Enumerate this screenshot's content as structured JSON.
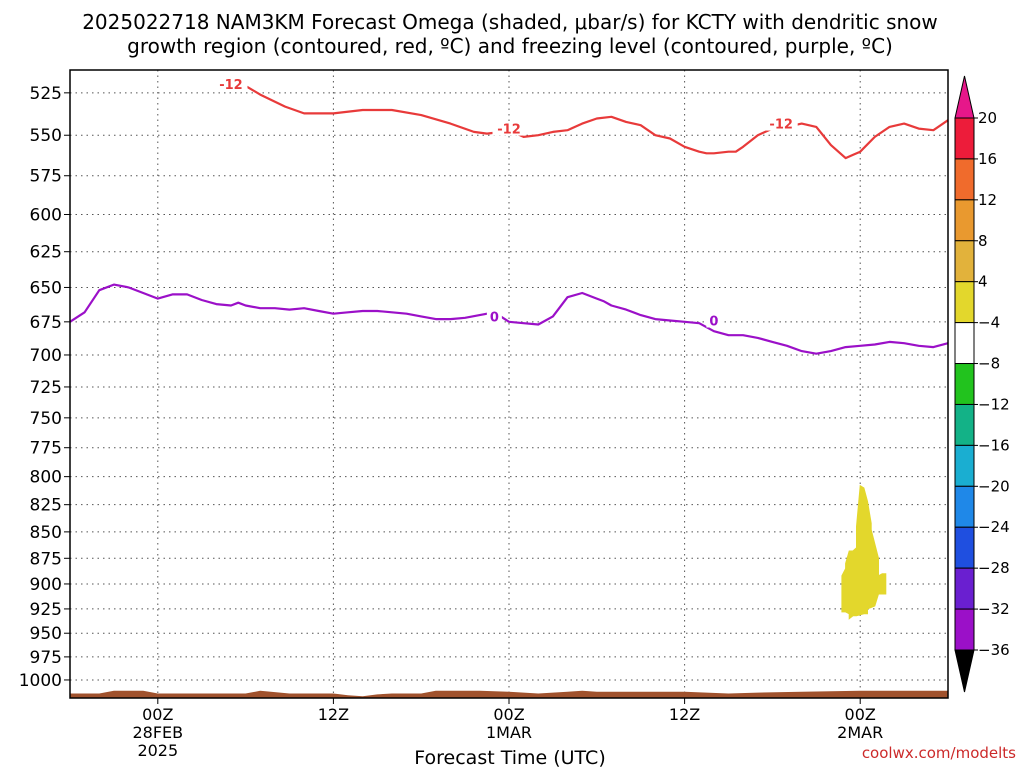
{
  "chart_data": {
    "type": "line",
    "title_line1": "2025022718 NAM3KM Forecast Omega (shaded, μbar/s) for KCTY with dendritic snow",
    "title_line2": "growth region (contoured, red, ºC) and freezing level (contoured, purple, ºC)",
    "xlabel": "Forecast Time (UTC)",
    "credit": "coolwx.com/modelts",
    "xlim": [
      0,
      60
    ],
    "ylim": [
      1020,
      512
    ],
    "yscale": "log",
    "grid": true,
    "y_ticks": [
      525,
      550,
      575,
      600,
      625,
      650,
      675,
      700,
      725,
      750,
      775,
      800,
      825,
      850,
      875,
      900,
      925,
      950,
      975,
      1000
    ],
    "x_ticks": [
      {
        "x": 6,
        "lines": [
          "00Z",
          "28FEB",
          "2025"
        ]
      },
      {
        "x": 18,
        "lines": [
          "12Z"
        ]
      },
      {
        "x": 30,
        "lines": [
          "00Z",
          "1MAR"
        ]
      },
      {
        "x": 42,
        "lines": [
          "12Z"
        ]
      },
      {
        "x": 54,
        "lines": [
          "00Z",
          "2MAR"
        ]
      }
    ],
    "series": [
      {
        "contour": "-12",
        "color": "#e83a3a",
        "x": [
          10.0,
          12.0,
          13.0,
          14.7,
          16.0,
          18.0,
          20.0,
          22.0,
          24.0,
          26.0,
          27.6,
          28.5,
          29.5,
          30.0,
          31.0,
          32.0,
          33.0,
          34.0,
          35.0,
          36.0,
          37.0,
          38.0,
          39.0,
          40.0,
          41.0,
          42.0,
          43.0,
          43.5,
          44.0,
          45.0,
          45.5,
          46.0,
          47.0,
          48.0,
          49.0,
          50.0,
          51.0,
          52.0,
          53.0,
          53.5,
          54.0,
          55.0,
          56.0,
          57.0,
          58.0,
          59.0,
          60.0
        ],
        "y": [
          517,
          521,
          526,
          533,
          537,
          537,
          535,
          535,
          538,
          543,
          548,
          549,
          548,
          547,
          551,
          550,
          548,
          547,
          543,
          540,
          539,
          542,
          544,
          550,
          552,
          557,
          560,
          561,
          561,
          560,
          560,
          557,
          550,
          546,
          545,
          543,
          545,
          556,
          564,
          562,
          560,
          551,
          545,
          543,
          546,
          547,
          541
        ],
        "labels": [
          {
            "x": 11,
            "y": 520
          },
          {
            "x": 30,
            "y": 546
          },
          {
            "x": 48.6,
            "y": 543
          }
        ]
      },
      {
        "contour": "0",
        "color": "#9b10c8",
        "x": [
          0.0,
          1.0,
          2.0,
          3.0,
          4.0,
          5.0,
          6.0,
          7.0,
          8.0,
          9.0,
          10.0,
          11.0,
          11.5,
          12.0,
          13.0,
          14.0,
          15.0,
          16.0,
          17.0,
          18.0,
          19.0,
          20.0,
          21.0,
          22.0,
          23.0,
          24.0,
          25.0,
          26.0,
          27.0,
          28.0,
          29.0,
          30.0,
          31.0,
          32.0,
          33.0,
          34.0,
          35.0,
          36.0,
          36.5,
          37.0,
          38.0,
          39.0,
          40.0,
          41.0,
          42.0,
          43.0,
          44.0,
          45.0,
          46.0,
          47.0,
          48.0,
          49.0,
          50.0,
          51.0,
          52.0,
          53.0,
          54.0,
          55.0,
          56.0,
          57.0,
          58.0,
          59.0,
          60.0
        ],
        "y": [
          675,
          668,
          652,
          648,
          650,
          654,
          658,
          655,
          655,
          659,
          662,
          663,
          661,
          663,
          665,
          665,
          666,
          665,
          667,
          669,
          668,
          667,
          667,
          668,
          669,
          671,
          673,
          673,
          672,
          670,
          668,
          675,
          676,
          677,
          671,
          657,
          654,
          658,
          660,
          663,
          666,
          670,
          673,
          674,
          675,
          676,
          682,
          685,
          685,
          687,
          690,
          693,
          697,
          699,
          697,
          694,
          693,
          692,
          690,
          691,
          693,
          694,
          691
        ],
        "labels": [
          {
            "x": 29,
            "y": 671
          },
          {
            "x": 44,
            "y": 674
          }
        ]
      }
    ],
    "shaded_regions": [
      {
        "color": "#e3d72c",
        "range": "4 to 8",
        "x": [
          54.0,
          54.25,
          54.5,
          54.75,
          54.75,
          55.25,
          55.25,
          55.5,
          55.75,
          55.75,
          55.25,
          55.0,
          54.5,
          54.5,
          54.25,
          53.75,
          53.5,
          53.25,
          53.25,
          53.0,
          52.75,
          52.75,
          53.0,
          53.0,
          53.25,
          53.5,
          53.75,
          53.75
        ],
        "y": [
          808,
          810,
          822,
          842,
          848,
          875,
          892,
          890,
          890,
          910,
          910,
          922,
          925,
          930,
          930,
          932,
          932,
          935,
          930,
          928,
          928,
          892,
          885,
          880,
          868,
          868,
          865,
          845
        ]
      }
    ],
    "terrain": {
      "color": "#a0522d",
      "x": [
        0,
        2,
        3,
        5,
        6,
        12,
        13,
        15,
        18,
        19,
        20,
        21,
        22,
        24,
        25,
        28,
        30,
        32,
        33,
        34,
        35,
        36,
        42,
        45,
        47,
        50,
        54,
        56,
        60
      ],
      "y": [
        1015,
        1015,
        1012,
        1012,
        1015,
        1015,
        1012,
        1015,
        1015,
        1017,
        1018,
        1016,
        1015,
        1015,
        1012,
        1012,
        1013,
        1015,
        1014,
        1013,
        1012,
        1013,
        1013,
        1015,
        1014,
        1013,
        1012,
        1012,
        1012
      ]
    },
    "colorbar": {
      "labels": [
        "20",
        "16",
        "12",
        "8",
        "4",
        "−4",
        "−8",
        "−12",
        "−16",
        "−20",
        "−24",
        "−28",
        "−32",
        "−36"
      ],
      "colors": [
        "#ed1c3a",
        "#f06b2c",
        "#e9992f",
        "#e2b23b",
        "#e3d72c",
        "#ffffff",
        "#22c31e",
        "#13b287",
        "#1aaed1",
        "#1f88e8",
        "#1f4fe0",
        "#6a1fd0",
        "#9b10c8",
        "#aaaaaa"
      ],
      "top_arrow_color": "#e6178a",
      "bottom_arrow_color": "#000000"
    }
  }
}
